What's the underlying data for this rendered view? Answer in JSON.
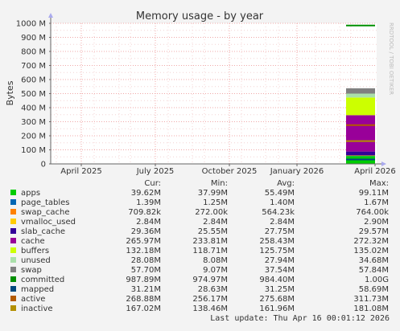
{
  "chart_data": {
    "type": "area",
    "title": "Memory usage - by year",
    "ylabel": "Bytes",
    "watermark": "RRDTOOL / TOBI OETIKER",
    "ylim": [
      0,
      1000000000
    ],
    "y_ticks": [
      "0",
      "100 M",
      "200 M",
      "300 M",
      "400 M",
      "500 M",
      "600 M",
      "700 M",
      "800 M",
      "900 M",
      "1000 M"
    ],
    "x_ticks": [
      "April 2025",
      "July 2025",
      "October 2025",
      "January 2026",
      "April 2026"
    ],
    "grid": true,
    "legend_headers": [
      "Cur:",
      "Min:",
      "Avg:",
      "Max:"
    ],
    "series": [
      {
        "name": "apps",
        "color": "#00cc00",
        "cur": "39.62M",
        "min": "37.99M",
        "avg": "55.49M",
        "max": "99.11M",
        "mb": 55.49
      },
      {
        "name": "page_tables",
        "color": "#0066b3",
        "cur": "1.39M",
        "min": "1.25M",
        "avg": "1.40M",
        "max": "1.67M",
        "mb": 1.4
      },
      {
        "name": "swap_cache",
        "color": "#ff8000",
        "cur": "709.82k",
        "min": "272.00k",
        "avg": "564.23k",
        "max": "764.00k",
        "mb": 0.56
      },
      {
        "name": "vmalloc_used",
        "color": "#ffcc00",
        "cur": "2.84M",
        "min": "2.84M",
        "avg": "2.84M",
        "max": "2.90M",
        "mb": 2.84
      },
      {
        "name": "slab_cache",
        "color": "#330099",
        "cur": "29.36M",
        "min": "25.55M",
        "avg": "27.75M",
        "max": "29.57M",
        "mb": 27.75
      },
      {
        "name": "cache",
        "color": "#990099",
        "cur": "265.97M",
        "min": "233.81M",
        "avg": "258.43M",
        "max": "272.32M",
        "mb": 258.43
      },
      {
        "name": "buffers",
        "color": "#ccff00",
        "cur": "132.18M",
        "min": "118.71M",
        "avg": "125.75M",
        "max": "135.02M",
        "mb": 125.75
      },
      {
        "name": "unused",
        "color": "#aae0aa",
        "cur": "28.08M",
        "min": "8.08M",
        "avg": "27.94M",
        "max": "34.68M",
        "mb": 27.94
      },
      {
        "name": "swap",
        "color": "#808080",
        "cur": "57.70M",
        "min": "9.07M",
        "avg": "37.54M",
        "max": "57.84M",
        "mb": 37.54
      },
      {
        "name": "committed",
        "color": "#008f00",
        "cur": "987.89M",
        "min": "974.97M",
        "avg": "984.40M",
        "max": "1.00G",
        "mb": 984.4
      },
      {
        "name": "mapped",
        "color": "#00487d",
        "cur": "31.21M",
        "min": "28.63M",
        "avg": "31.25M",
        "max": "58.69M",
        "mb": 31.25
      },
      {
        "name": "active",
        "color": "#b35a00",
        "cur": "268.88M",
        "min": "256.17M",
        "avg": "275.68M",
        "max": "311.73M",
        "mb": 275.68
      },
      {
        "name": "inactive",
        "color": "#b38f00",
        "cur": "167.02M",
        "min": "138.46M",
        "avg": "161.96M",
        "max": "181.08M",
        "mb": 161.96
      }
    ],
    "last_update": "Last update: Thu Apr 16 00:01:12 2026"
  }
}
